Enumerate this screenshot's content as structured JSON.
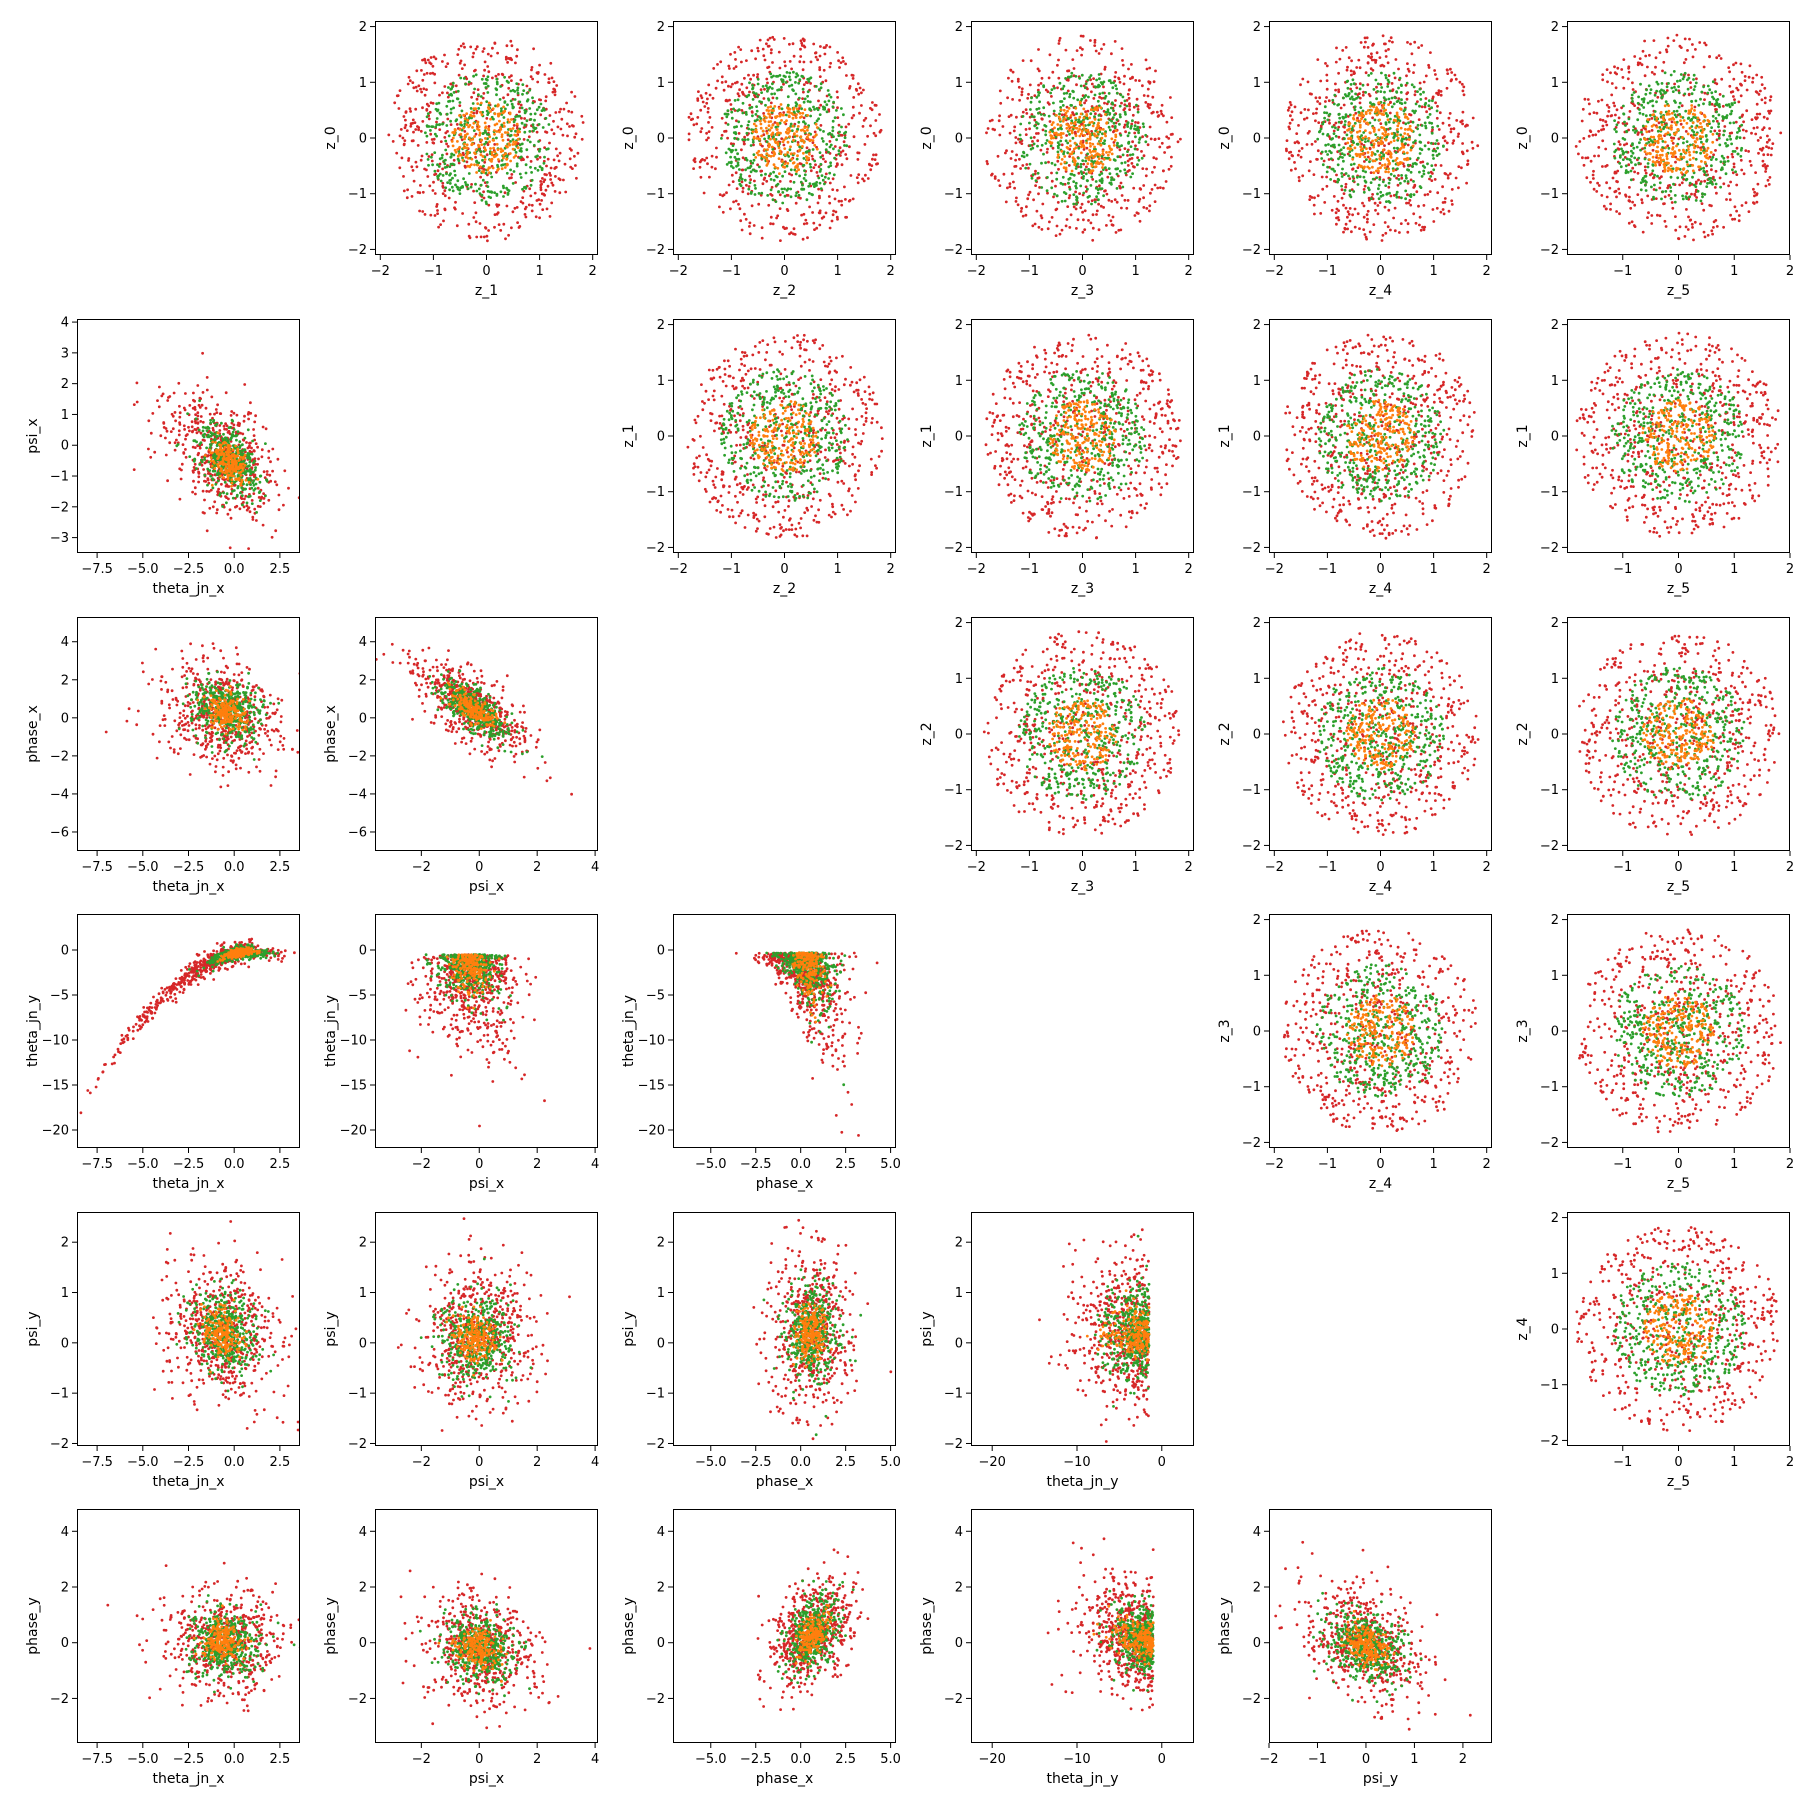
{
  "colors": {
    "outer": "#d62728",
    "middle": "#2ca02c",
    "inner": "#ff7f0e"
  },
  "chart_data": {
    "type": "scatter",
    "layout": "pairplot-matrix",
    "marker_size": "small",
    "grid": false,
    "legend": "none",
    "variables": {
      "theta_jn_x": {
        "ticks": [
          -7.5,
          -5.0,
          -2.5,
          0.0,
          2.5
        ],
        "labels": [
          "−7.5",
          "−5.0",
          "−2.5",
          "0.0",
          "2.5"
        ],
        "lim": [
          -8.6,
          3.6
        ]
      },
      "psi_x": {
        "ticks": [
          -2,
          0,
          2,
          4
        ],
        "labels": [
          "−2",
          "0",
          "2",
          "4"
        ],
        "lim": [
          -3.6,
          4.1
        ]
      },
      "phase_x": {
        "ticks": [
          -5.0,
          -2.5,
          0.0,
          2.5,
          5.0
        ],
        "labels": [
          "−5.0",
          "−2.5",
          "0.0",
          "2.5",
          "5.0"
        ],
        "lim": [
          -7.1,
          5.3
        ]
      },
      "theta_jn_y": {
        "ticks": [
          -20,
          -10,
          0
        ],
        "labels": [
          "−20",
          "−10",
          "0"
        ],
        "lim": [
          -22.5,
          3.8
        ]
      },
      "psi_y": {
        "ticks": [
          -2,
          -1,
          0,
          1,
          2
        ],
        "labels": [
          "−2",
          "−1",
          "0",
          "1",
          "2"
        ],
        "lim": [
          -2.0,
          2.6
        ]
      },
      "z_lat": {
        "ticks": [
          -2,
          -1,
          0,
          1,
          2
        ],
        "labels": [
          "−2",
          "−1",
          "0",
          "1",
          "2"
        ],
        "lim": [
          -2.1,
          2.1
        ]
      },
      "z_5": {
        "ticks": [
          -1,
          0,
          1,
          2
        ],
        "labels": [
          "−1",
          "0",
          "1",
          "2"
        ],
        "lim": [
          -2.0,
          2.0
        ]
      },
      "y_theta_x": {
        "ticks": [
          -3,
          -2,
          -1,
          0,
          1,
          2,
          3,
          4
        ],
        "labels": [
          "−3",
          "−2",
          "−1",
          "0",
          "1",
          "2",
          "3",
          "4"
        ],
        "lim": [
          -3.5,
          4.1
        ]
      },
      "y_phase_x": {
        "ticks": [
          -6,
          -4,
          -2,
          0,
          2,
          4
        ],
        "labels": [
          "−6",
          "−4",
          "−2",
          "0",
          "2",
          "4"
        ],
        "lim": [
          -7.0,
          5.3
        ]
      },
      "y_theta_y": {
        "ticks": [
          -20,
          -15,
          -10,
          -5,
          0
        ],
        "labels": [
          "−20",
          "−15",
          "−10",
          "−5",
          "0"
        ],
        "lim": [
          -22.0,
          4.0
        ]
      },
      "y_psi_y": {
        "ticks": [
          -2,
          -1,
          0,
          1,
          2
        ],
        "labels": [
          "−2",
          "−1",
          "0",
          "1",
          "2"
        ],
        "lim": [
          -2.05,
          2.6
        ]
      },
      "y_phase_y": {
        "ticks": [
          -2,
          0,
          2,
          4
        ],
        "labels": [
          "−2",
          "0",
          "2",
          "4"
        ],
        "lim": [
          -3.6,
          4.8
        ]
      }
    },
    "panels": [
      {
        "row": 0,
        "col": 1,
        "xlabel": "z_1",
        "ylabel": "z_0",
        "xvar": "z_lat",
        "yvar": "z_lat",
        "seed": 101,
        "kind": "iso"
      },
      {
        "row": 0,
        "col": 2,
        "xlabel": "z_2",
        "ylabel": "z_0",
        "xvar": "z_lat",
        "yvar": "z_lat",
        "seed": 102,
        "kind": "iso"
      },
      {
        "row": 0,
        "col": 3,
        "xlabel": "z_3",
        "ylabel": "z_0",
        "xvar": "z_lat",
        "yvar": "z_lat",
        "seed": 103,
        "kind": "iso"
      },
      {
        "row": 0,
        "col": 4,
        "xlabel": "z_4",
        "ylabel": "z_0",
        "xvar": "z_lat",
        "yvar": "z_lat",
        "seed": 104,
        "kind": "iso"
      },
      {
        "row": 0,
        "col": 5,
        "xlabel": "z_5",
        "ylabel": "z_0",
        "xvar": "z_5",
        "yvar": "z_lat",
        "seed": 105,
        "kind": "iso"
      },
      {
        "row": 1,
        "col": 2,
        "xlabel": "z_2",
        "ylabel": "z_1",
        "xvar": "z_lat",
        "yvar": "z_lat",
        "seed": 112,
        "kind": "iso"
      },
      {
        "row": 1,
        "col": 3,
        "xlabel": "z_3",
        "ylabel": "z_1",
        "xvar": "z_lat",
        "yvar": "z_lat",
        "seed": 113,
        "kind": "iso"
      },
      {
        "row": 1,
        "col": 4,
        "xlabel": "z_4",
        "ylabel": "z_1",
        "xvar": "z_lat",
        "yvar": "z_lat",
        "seed": 114,
        "kind": "iso"
      },
      {
        "row": 1,
        "col": 5,
        "xlabel": "z_5",
        "ylabel": "z_1",
        "xvar": "z_5",
        "yvar": "z_lat",
        "seed": 115,
        "kind": "iso"
      },
      {
        "row": 2,
        "col": 3,
        "xlabel": "z_3",
        "ylabel": "z_2",
        "xvar": "z_lat",
        "yvar": "z_lat",
        "seed": 123,
        "kind": "iso"
      },
      {
        "row": 2,
        "col": 4,
        "xlabel": "z_4",
        "ylabel": "z_2",
        "xvar": "z_lat",
        "yvar": "z_lat",
        "seed": 124,
        "kind": "iso"
      },
      {
        "row": 2,
        "col": 5,
        "xlabel": "z_5",
        "ylabel": "z_2",
        "xvar": "z_5",
        "yvar": "z_lat",
        "seed": 125,
        "kind": "iso"
      },
      {
        "row": 3,
        "col": 4,
        "xlabel": "z_4",
        "ylabel": "z_3",
        "xvar": "z_lat",
        "yvar": "z_lat",
        "seed": 134,
        "kind": "iso"
      },
      {
        "row": 3,
        "col": 5,
        "xlabel": "z_5",
        "ylabel": "z_3",
        "xvar": "z_5",
        "yvar": "z_lat",
        "seed": 135,
        "kind": "iso"
      },
      {
        "row": 4,
        "col": 5,
        "xlabel": "z_5",
        "ylabel": "z_4",
        "xvar": "z_5",
        "yvar": "z_lat",
        "seed": 145,
        "kind": "iso"
      },
      {
        "row": 1,
        "col": 0,
        "xlabel": "theta_jn_x",
        "ylabel": "psi_x",
        "xvar": "theta_jn_x",
        "yvar": "y_theta_x",
        "seed": 210,
        "kind": "psi_vs_theta"
      },
      {
        "row": 2,
        "col": 0,
        "xlabel": "theta_jn_x",
        "ylabel": "phase_x",
        "xvar": "theta_jn_x",
        "yvar": "y_phase_x",
        "seed": 220,
        "kind": "phase_vs_theta"
      },
      {
        "row": 2,
        "col": 1,
        "xlabel": "psi_x",
        "ylabel": "phase_x",
        "xvar": "psi_x",
        "yvar": "y_phase_x",
        "seed": 221,
        "kind": "phase_vs_psi"
      },
      {
        "row": 3,
        "col": 0,
        "xlabel": "theta_jn_x",
        "ylabel": "theta_jn_y",
        "xvar": "theta_jn_x",
        "yvar": "y_theta_y",
        "seed": 230,
        "kind": "thy_vs_theta"
      },
      {
        "row": 3,
        "col": 1,
        "xlabel": "psi_x",
        "ylabel": "theta_jn_y",
        "xvar": "psi_x",
        "yvar": "y_theta_y",
        "seed": 231,
        "kind": "thy_vs_psi"
      },
      {
        "row": 3,
        "col": 2,
        "xlabel": "phase_x",
        "ylabel": "theta_jn_y",
        "xvar": "phase_x",
        "yvar": "y_theta_y",
        "seed": 232,
        "kind": "thy_vs_phase"
      },
      {
        "row": 4,
        "col": 0,
        "xlabel": "theta_jn_x",
        "ylabel": "psi_y",
        "xvar": "theta_jn_x",
        "yvar": "y_psi_y",
        "seed": 240,
        "kind": "psiy_vs_theta"
      },
      {
        "row": 4,
        "col": 1,
        "xlabel": "psi_x",
        "ylabel": "psi_y",
        "xvar": "psi_x",
        "yvar": "y_psi_y",
        "seed": 241,
        "kind": "psiy_vs_psi"
      },
      {
        "row": 4,
        "col": 2,
        "xlabel": "phase_x",
        "ylabel": "psi_y",
        "xvar": "phase_x",
        "yvar": "y_psi_y",
        "seed": 242,
        "kind": "psiy_vs_phase"
      },
      {
        "row": 4,
        "col": 3,
        "xlabel": "theta_jn_y",
        "ylabel": "psi_y",
        "xvar": "theta_jn_y",
        "yvar": "y_psi_y",
        "seed": 243,
        "kind": "psiy_vs_thy"
      },
      {
        "row": 5,
        "col": 0,
        "xlabel": "theta_jn_x",
        "ylabel": "phase_y",
        "xvar": "theta_jn_x",
        "yvar": "y_phase_y",
        "seed": 250,
        "kind": "phy_vs_theta"
      },
      {
        "row": 5,
        "col": 1,
        "xlabel": "psi_x",
        "ylabel": "phase_y",
        "xvar": "psi_x",
        "yvar": "y_phase_y",
        "seed": 251,
        "kind": "phy_vs_psi"
      },
      {
        "row": 5,
        "col": 2,
        "xlabel": "phase_x",
        "ylabel": "phase_y",
        "xvar": "phase_x",
        "yvar": "y_phase_y",
        "seed": 252,
        "kind": "phy_vs_phase"
      },
      {
        "row": 5,
        "col": 3,
        "xlabel": "theta_jn_y",
        "ylabel": "phase_y",
        "xvar": "theta_jn_y",
        "yvar": "y_phase_y",
        "seed": 253,
        "kind": "phy_vs_thy"
      },
      {
        "row": 5,
        "col": 4,
        "xlabel": "psi_y",
        "ylabel": "phase_y",
        "xvar": "psi_y",
        "yvar": "y_phase_y",
        "seed": 254,
        "kind": "phy_vs_psiy"
      }
    ]
  }
}
